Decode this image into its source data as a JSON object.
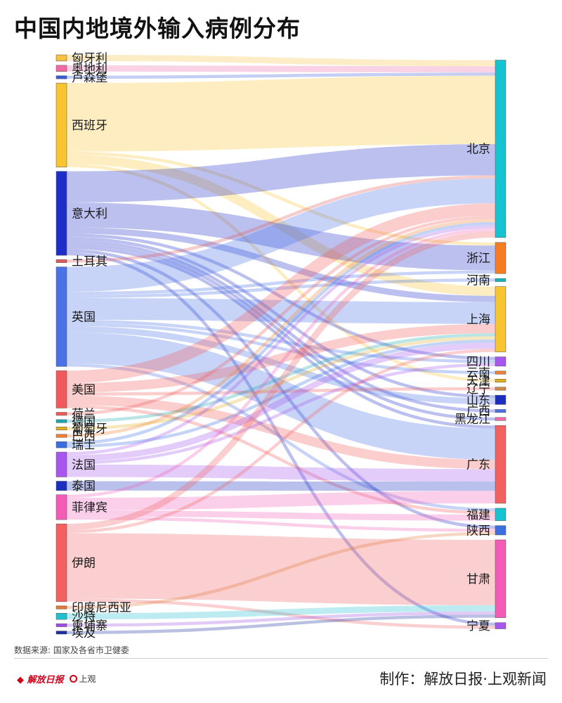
{
  "title": "中国内地境外输入病例分布",
  "source": "数据来源: 国家及各省市卫健委",
  "credit": "制作：解放日报·上观新闻",
  "logos": {
    "jiefang": "解放日报",
    "shangguan": "上观"
  },
  "chart_data": {
    "type": "sankey",
    "title": "中国内地境外输入病例分布",
    "sources": [
      {
        "name": "匈牙利",
        "color": "#f5c242"
      },
      {
        "name": "奥地利",
        "color": "#f06aa8"
      },
      {
        "name": "卢森堡",
        "color": "#3b5bd6"
      },
      {
        "name": "西班牙",
        "color": "#f7c531"
      },
      {
        "name": "意大利",
        "color": "#1f2ec9"
      },
      {
        "name": "土耳其",
        "color": "#e05a5a"
      },
      {
        "name": "英国",
        "color": "#4a72e6"
      },
      {
        "name": "美国",
        "color": "#f15a5a"
      },
      {
        "name": "荷兰",
        "color": "#f15a5a"
      },
      {
        "name": "德国",
        "color": "#1aa8b0"
      },
      {
        "name": "葡萄牙",
        "color": "#e0b020"
      },
      {
        "name": "巴西",
        "color": "#f08030"
      },
      {
        "name": "瑞士",
        "color": "#3b6fe0"
      },
      {
        "name": "法国",
        "color": "#a757f0"
      },
      {
        "name": "泰国",
        "color": "#1a2fc0"
      },
      {
        "name": "菲律宾",
        "color": "#f25cb5"
      },
      {
        "name": "伊朗",
        "color": "#f26060"
      },
      {
        "name": "印度尼西亚",
        "color": "#e07a3a"
      },
      {
        "name": "沙特",
        "color": "#20c0d0"
      },
      {
        "name": "柬埔寨",
        "color": "#9b4fe0"
      },
      {
        "name": "埃及",
        "color": "#1a2fa0"
      }
    ],
    "targets": [
      {
        "name": "北京",
        "color": "#16c3d0"
      },
      {
        "name": "浙江",
        "color": "#f57c20"
      },
      {
        "name": "河南",
        "color": "#16b5b5"
      },
      {
        "name": "上海",
        "color": "#f7c531"
      },
      {
        "name": "四川",
        "color": "#a757f0"
      },
      {
        "name": "云南",
        "color": "#f08030"
      },
      {
        "name": "天津",
        "color": "#e0b020"
      },
      {
        "name": "辽宁",
        "color": "#d08a40"
      },
      {
        "name": "山东",
        "color": "#1a2fc0"
      },
      {
        "name": "广西",
        "color": "#4a72e6"
      },
      {
        "name": "黑龙江",
        "color": "#f06aa8"
      },
      {
        "name": "广东",
        "color": "#f26060"
      },
      {
        "name": "福建",
        "color": "#16c3d0"
      },
      {
        "name": "陕西",
        "color": "#3b6fe0"
      },
      {
        "name": "甘肃",
        "color": "#f25cb5"
      },
      {
        "name": "宁夏",
        "color": "#a757f0"
      }
    ],
    "links": [
      {
        "source": "匈牙利",
        "target": "北京",
        "value": 2
      },
      {
        "source": "奥地利",
        "target": "北京",
        "value": 2
      },
      {
        "source": "卢森堡",
        "target": "北京",
        "value": 1
      },
      {
        "source": "西班牙",
        "target": "北京",
        "value": 22
      },
      {
        "source": "西班牙",
        "target": "上海",
        "value": 3
      },
      {
        "source": "西班牙",
        "target": "浙江",
        "value": 1
      },
      {
        "source": "西班牙",
        "target": "天津",
        "value": 1
      },
      {
        "source": "意大利",
        "target": "北京",
        "value": 10
      },
      {
        "source": "意大利",
        "target": "浙江",
        "value": 8
      },
      {
        "source": "意大利",
        "target": "上海",
        "value": 2
      },
      {
        "source": "意大利",
        "target": "四川",
        "value": 1
      },
      {
        "source": "意大利",
        "target": "山东",
        "value": 1
      },
      {
        "source": "意大利",
        "target": "广东",
        "value": 1
      },
      {
        "source": "意大利",
        "target": "陕西",
        "value": 1
      },
      {
        "source": "意大利",
        "target": "宁夏",
        "value": 1
      },
      {
        "source": "意大利",
        "target": "广西",
        "value": 1
      },
      {
        "source": "意大利",
        "target": "黑龙江",
        "value": 1
      },
      {
        "source": "土耳其",
        "target": "北京",
        "value": 1
      },
      {
        "source": "英国",
        "target": "北京",
        "value": 8
      },
      {
        "source": "英国",
        "target": "上海",
        "value": 7
      },
      {
        "source": "英国",
        "target": "广东",
        "value": 10
      },
      {
        "source": "英国",
        "target": "浙江",
        "value": 1
      },
      {
        "source": "英国",
        "target": "河南",
        "value": 1
      },
      {
        "source": "英国",
        "target": "山东",
        "value": 2
      },
      {
        "source": "英国",
        "target": "四川",
        "value": 1
      },
      {
        "source": "英国",
        "target": "云南",
        "value": 1
      },
      {
        "source": "英国",
        "target": "福建",
        "value": 1
      },
      {
        "source": "美国",
        "target": "北京",
        "value": 4
      },
      {
        "source": "美国",
        "target": "上海",
        "value": 3
      },
      {
        "source": "美国",
        "target": "广东",
        "value": 3
      },
      {
        "source": "美国",
        "target": "福建",
        "value": 1
      },
      {
        "source": "美国",
        "target": "辽宁",
        "value": 1
      },
      {
        "source": "荷兰",
        "target": "北京",
        "value": 1
      },
      {
        "source": "德国",
        "target": "上海",
        "value": 1
      },
      {
        "source": "葡萄牙",
        "target": "上海",
        "value": 1
      },
      {
        "source": "巴西",
        "target": "北京",
        "value": 1
      },
      {
        "source": "瑞士",
        "target": "上海",
        "value": 1
      },
      {
        "source": "瑞士",
        "target": "北京",
        "value": 1
      },
      {
        "source": "法国",
        "target": "广东",
        "value": 4
      },
      {
        "source": "法国",
        "target": "上海",
        "value": 2
      },
      {
        "source": "法国",
        "target": "四川",
        "value": 1
      },
      {
        "source": "法国",
        "target": "北京",
        "value": 1
      },
      {
        "source": "泰国",
        "target": "广东",
        "value": 3
      },
      {
        "source": "菲律宾",
        "target": "广东",
        "value": 4
      },
      {
        "source": "菲律宾",
        "target": "福建",
        "value": 2
      },
      {
        "source": "菲律宾",
        "target": "北京",
        "value": 1
      },
      {
        "source": "菲律宾",
        "target": "陕西",
        "value": 1
      },
      {
        "source": "伊朗",
        "target": "甘肃",
        "value": 21
      },
      {
        "source": "伊朗",
        "target": "北京",
        "value": 2
      },
      {
        "source": "伊朗",
        "target": "上海",
        "value": 1
      },
      {
        "source": "伊朗",
        "target": "宁夏",
        "value": 1
      },
      {
        "source": "印度尼西亚",
        "target": "陕西",
        "value": 1
      },
      {
        "source": "沙特",
        "target": "甘肃",
        "value": 2
      },
      {
        "source": "柬埔寨",
        "target": "甘肃",
        "value": 1
      },
      {
        "source": "埃及",
        "target": "甘肃",
        "value": 1
      }
    ]
  }
}
